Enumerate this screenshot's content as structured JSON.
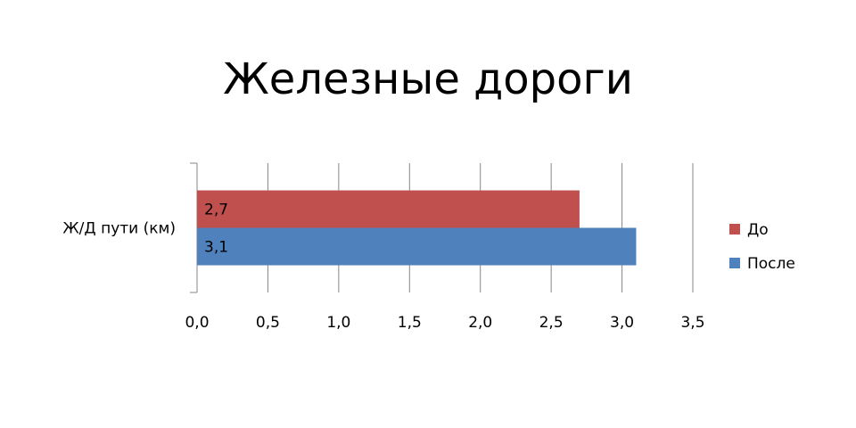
{
  "chart_data": {
    "type": "barh",
    "title": "Железные дороги",
    "categories": [
      "Ж/Д пути (км)"
    ],
    "series": [
      {
        "name": "До",
        "color": "#c0504d",
        "values": [
          2.7
        ],
        "value_labels": [
          "2,7"
        ]
      },
      {
        "name": "После",
        "color": "#4f81bd",
        "values": [
          3.1
        ],
        "value_labels": [
          "3,1"
        ]
      }
    ],
    "xlim": [
      0,
      3.5
    ],
    "xticks": [
      {
        "value": 0,
        "label": "0,0"
      },
      {
        "value": 0.5,
        "label": "0,5"
      },
      {
        "value": 1,
        "label": "1,0"
      },
      {
        "value": 1.5,
        "label": "1,5"
      },
      {
        "value": 2,
        "label": "2,0"
      },
      {
        "value": 2.5,
        "label": "2,5"
      },
      {
        "value": 3,
        "label": "3,0"
      },
      {
        "value": 3.5,
        "label": "3,5"
      }
    ],
    "grid": true,
    "legend": "right"
  }
}
